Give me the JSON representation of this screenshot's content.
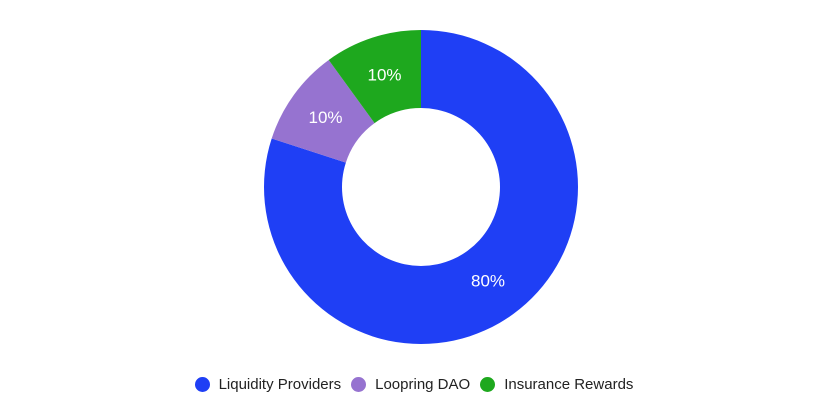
{
  "chart_data": {
    "type": "pie",
    "variant": "donut",
    "title": "",
    "categories": [
      "Liquidity Providers",
      "Loopring DAO",
      "Insurance Rewards"
    ],
    "values": [
      80,
      10,
      10
    ],
    "labels": [
      "80%",
      "10%",
      "10%"
    ],
    "colors": [
      "#1f3ff5",
      "#9673d0",
      "#1ea81e"
    ],
    "legend_position": "bottom",
    "start_angle_deg": 0,
    "direction": "clockwise"
  },
  "legend": {
    "items": [
      {
        "label": "Liquidity Providers",
        "color": "#1f3ff5"
      },
      {
        "label": "Loopring DAO",
        "color": "#9673d0"
      },
      {
        "label": "Insurance Rewards",
        "color": "#1ea81e"
      }
    ]
  }
}
